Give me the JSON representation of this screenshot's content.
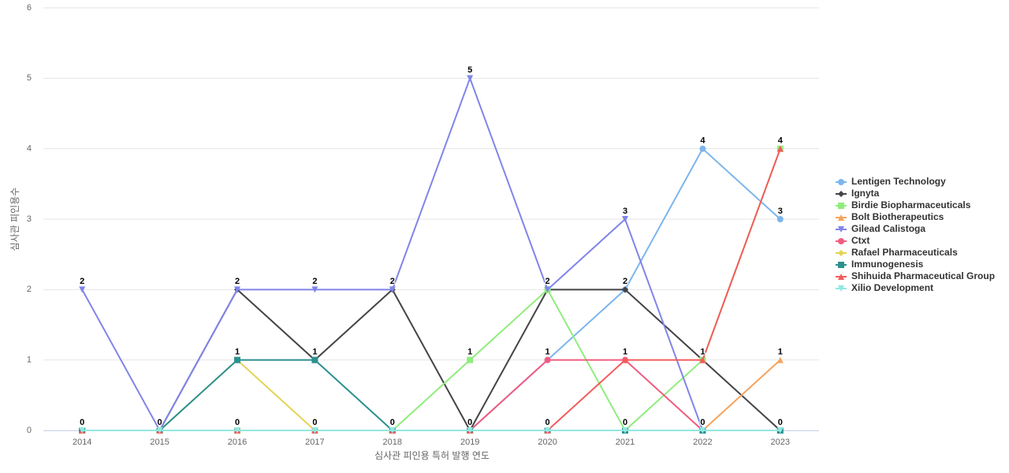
{
  "chart_data": {
    "type": "line",
    "x_label": "심사관 피인용 특허 발행 연도",
    "y_label": "심사관 피인용수",
    "categories": [
      "2014",
      "2015",
      "2016",
      "2017",
      "2018",
      "2019",
      "2020",
      "2021",
      "2022",
      "2023"
    ],
    "ylim": [
      0,
      6
    ],
    "yticks": [
      0,
      1,
      2,
      3,
      4,
      5,
      6
    ],
    "grid": true,
    "legend": "right",
    "series": [
      {
        "name": "Lentigen Technology",
        "color": "#7cb5ec",
        "symbol": "circle",
        "values": [
          0,
          0,
          0,
          0,
          0,
          0,
          1,
          2,
          4,
          3
        ]
      },
      {
        "name": "Ignyta",
        "color": "#434348",
        "symbol": "diamond",
        "values": [
          0,
          0,
          2,
          1,
          2,
          0,
          2,
          2,
          1,
          0
        ]
      },
      {
        "name": "Birdie Biopharmaceuticals",
        "color": "#90ed7d",
        "symbol": "square",
        "values": [
          0,
          0,
          0,
          0,
          0,
          1,
          2,
          0,
          1,
          4
        ]
      },
      {
        "name": "Bolt Biotherapeutics",
        "color": "#f7a35c",
        "symbol": "triangle",
        "values": [
          0,
          0,
          0,
          0,
          0,
          0,
          0,
          0,
          0,
          1
        ]
      },
      {
        "name": "Gilead Calistoga",
        "color": "#8085e9",
        "symbol": "triangle-down",
        "values": [
          2,
          0,
          2,
          2,
          2,
          5,
          2,
          3,
          0,
          0
        ]
      },
      {
        "name": "Ctxt",
        "color": "#f15c80",
        "symbol": "circle",
        "values": [
          0,
          0,
          0,
          0,
          0,
          0,
          1,
          1,
          0,
          0
        ]
      },
      {
        "name": "Rafael Pharmaceuticals",
        "color": "#e4d354",
        "symbol": "diamond",
        "values": [
          0,
          0,
          1,
          0,
          0,
          0,
          0,
          0,
          0,
          0
        ]
      },
      {
        "name": "Immunogenesis",
        "color": "#2b908f",
        "symbol": "square",
        "values": [
          0,
          0,
          1,
          1,
          0,
          0,
          0,
          0,
          0,
          0
        ]
      },
      {
        "name": "Shihuida Pharmaceutical Group",
        "color": "#f45b5b",
        "symbol": "triangle",
        "values": [
          0,
          0,
          0,
          0,
          0,
          0,
          0,
          1,
          1,
          4
        ]
      },
      {
        "name": "Xilio Development",
        "color": "#91e8e1",
        "symbol": "triangle-down",
        "values": [
          0,
          0,
          0,
          0,
          0,
          0,
          0,
          0,
          0,
          0
        ]
      }
    ]
  }
}
